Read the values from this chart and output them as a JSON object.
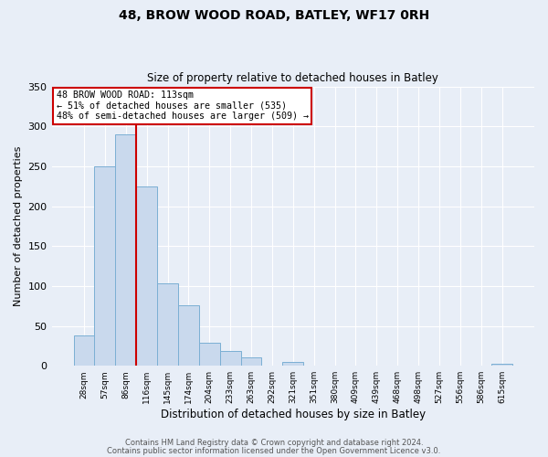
{
  "title": "48, BROW WOOD ROAD, BATLEY, WF17 0RH",
  "subtitle": "Size of property relative to detached houses in Batley",
  "xlabel": "Distribution of detached houses by size in Batley",
  "ylabel": "Number of detached properties",
  "bin_labels": [
    "28sqm",
    "57sqm",
    "86sqm",
    "116sqm",
    "145sqm",
    "174sqm",
    "204sqm",
    "233sqm",
    "263sqm",
    "292sqm",
    "321sqm",
    "351sqm",
    "380sqm",
    "409sqm",
    "439sqm",
    "468sqm",
    "498sqm",
    "527sqm",
    "556sqm",
    "586sqm",
    "615sqm"
  ],
  "bar_values": [
    38,
    250,
    290,
    225,
    103,
    76,
    29,
    18,
    11,
    0,
    5,
    0,
    0,
    0,
    0,
    0,
    0,
    0,
    0,
    0,
    2
  ],
  "bar_color": "#c9d9ed",
  "bar_edge_color": "#7bafd4",
  "vline_color": "#cc0000",
  "vline_position": 2.5,
  "annotation_title": "48 BROW WOOD ROAD: 113sqm",
  "annotation_line1": "← 51% of detached houses are smaller (535)",
  "annotation_line2": "48% of semi-detached houses are larger (509) →",
  "annotation_box_edge": "#cc0000",
  "ylim": [
    0,
    350
  ],
  "yticks": [
    0,
    50,
    100,
    150,
    200,
    250,
    300,
    350
  ],
  "footer1": "Contains HM Land Registry data © Crown copyright and database right 2024.",
  "footer2": "Contains public sector information licensed under the Open Government Licence v3.0.",
  "background_color": "#e8eef7",
  "plot_bg_color": "#e8eef7",
  "grid_color": "#ffffff"
}
